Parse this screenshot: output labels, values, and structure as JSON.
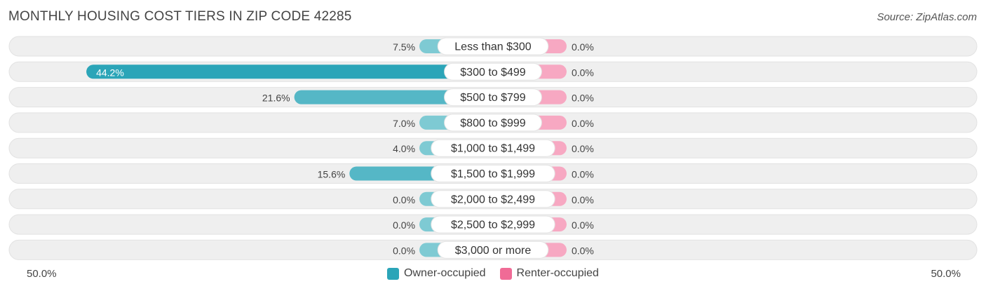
{
  "title": "MONTHLY HOUSING COST TIERS IN ZIP CODE 42285",
  "source": "Source: ZipAtlas.com",
  "colors": {
    "owner": "#2ba5b8",
    "owner_light": "#7ecad3",
    "renter": "#f06b96",
    "renter_light": "#f7a8c2",
    "track": "#efefef"
  },
  "chart_data": {
    "type": "bar",
    "orientation": "horizontal-diverging",
    "categories": [
      "Less than $300",
      "$300 to $499",
      "$500 to $799",
      "$800 to $999",
      "$1,000 to $1,499",
      "$1,500 to $1,999",
      "$2,000 to $2,499",
      "$2,500 to $2,999",
      "$3,000 or more"
    ],
    "series": [
      {
        "name": "Owner-occupied",
        "values": [
          7.5,
          44.2,
          21.6,
          7.0,
          4.0,
          15.6,
          0.0,
          0.0,
          0.0
        ],
        "labels": [
          "7.5%",
          "44.2%",
          "21.6%",
          "7.0%",
          "4.0%",
          "15.6%",
          "0.0%",
          "0.0%",
          "0.0%"
        ]
      },
      {
        "name": "Renter-occupied",
        "values": [
          0.0,
          0.0,
          0.0,
          0.0,
          0.0,
          0.0,
          0.0,
          0.0,
          0.0
        ],
        "labels": [
          "0.0%",
          "0.0%",
          "0.0%",
          "0.0%",
          "0.0%",
          "0.0%",
          "0.0%",
          "0.0%",
          "0.0%"
        ]
      }
    ],
    "xlim": [
      -50,
      50
    ],
    "axis_labels": {
      "left": "50.0%",
      "right": "50.0%"
    },
    "legend_position": "bottom-center",
    "grid": false
  }
}
